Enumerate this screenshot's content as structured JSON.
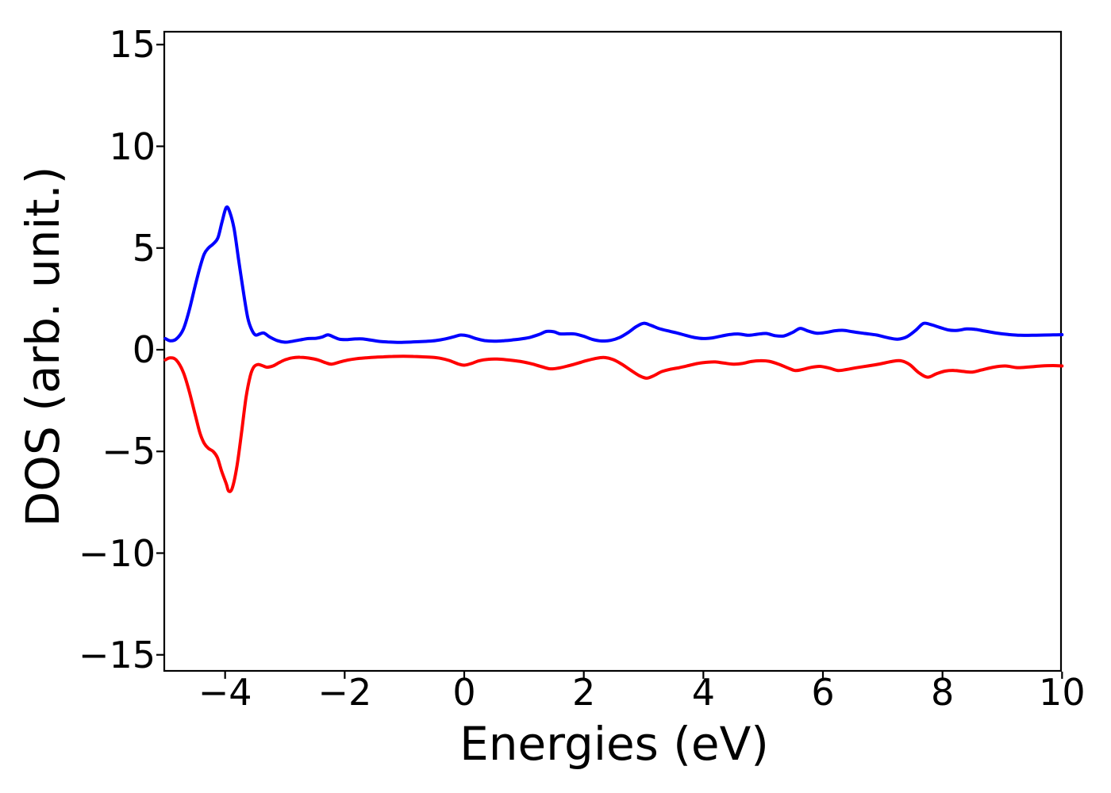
{
  "figure": {
    "background": "#ffffff",
    "frame_color": "#000000"
  },
  "chart_data": {
    "type": "line",
    "title": "",
    "xlabel": "Energies (eV)",
    "ylabel": "DOS (arb. unit.)",
    "xlim": [
      -5,
      10
    ],
    "ylim": [
      -15.8,
      15.6
    ],
    "x_ticks": [
      -4,
      -2,
      0,
      2,
      4,
      6,
      8,
      10
    ],
    "y_ticks": [
      15,
      10,
      5,
      0,
      -5,
      -10,
      -15
    ],
    "grid": false,
    "legend_position": "none",
    "series": [
      {
        "name": "blue-curve-spin-up-dos",
        "color": "#0000ff",
        "line_width": 4,
        "points": [
          [
            -5.0,
            0.55
          ],
          [
            -4.92,
            0.44
          ],
          [
            -4.82,
            0.52
          ],
          [
            -4.7,
            1.0
          ],
          [
            -4.6,
            1.95
          ],
          [
            -4.5,
            3.15
          ],
          [
            -4.42,
            4.05
          ],
          [
            -4.35,
            4.7
          ],
          [
            -4.28,
            5.0
          ],
          [
            -4.2,
            5.2
          ],
          [
            -4.12,
            5.5
          ],
          [
            -4.05,
            6.3
          ],
          [
            -3.98,
            7.0
          ],
          [
            -3.92,
            6.75
          ],
          [
            -3.85,
            5.95
          ],
          [
            -3.78,
            4.55
          ],
          [
            -3.7,
            2.95
          ],
          [
            -3.62,
            1.55
          ],
          [
            -3.55,
            0.95
          ],
          [
            -3.49,
            0.72
          ],
          [
            -3.42,
            0.78
          ],
          [
            -3.35,
            0.82
          ],
          [
            -3.25,
            0.62
          ],
          [
            -3.12,
            0.44
          ],
          [
            -3.0,
            0.37
          ],
          [
            -2.9,
            0.4
          ],
          [
            -2.75,
            0.48
          ],
          [
            -2.6,
            0.55
          ],
          [
            -2.48,
            0.56
          ],
          [
            -2.38,
            0.62
          ],
          [
            -2.28,
            0.73
          ],
          [
            -2.18,
            0.62
          ],
          [
            -2.08,
            0.51
          ],
          [
            -1.95,
            0.5
          ],
          [
            -1.82,
            0.53
          ],
          [
            -1.7,
            0.53
          ],
          [
            -1.56,
            0.47
          ],
          [
            -1.42,
            0.41
          ],
          [
            -1.28,
            0.38
          ],
          [
            -1.12,
            0.36
          ],
          [
            -0.96,
            0.37
          ],
          [
            -0.8,
            0.39
          ],
          [
            -0.64,
            0.41
          ],
          [
            -0.48,
            0.45
          ],
          [
            -0.32,
            0.53
          ],
          [
            -0.18,
            0.63
          ],
          [
            -0.06,
            0.72
          ],
          [
            0.06,
            0.68
          ],
          [
            0.2,
            0.54
          ],
          [
            0.34,
            0.45
          ],
          [
            0.5,
            0.42
          ],
          [
            0.65,
            0.44
          ],
          [
            0.8,
            0.48
          ],
          [
            0.95,
            0.53
          ],
          [
            1.1,
            0.61
          ],
          [
            1.25,
            0.75
          ],
          [
            1.38,
            0.9
          ],
          [
            1.5,
            0.88
          ],
          [
            1.6,
            0.78
          ],
          [
            1.72,
            0.78
          ],
          [
            1.85,
            0.77
          ],
          [
            2.0,
            0.66
          ],
          [
            2.14,
            0.51
          ],
          [
            2.3,
            0.43
          ],
          [
            2.45,
            0.46
          ],
          [
            2.6,
            0.6
          ],
          [
            2.75,
            0.86
          ],
          [
            2.88,
            1.14
          ],
          [
            3.0,
            1.3
          ],
          [
            3.12,
            1.2
          ],
          [
            3.25,
            1.05
          ],
          [
            3.4,
            0.93
          ],
          [
            3.55,
            0.83
          ],
          [
            3.7,
            0.71
          ],
          [
            3.85,
            0.6
          ],
          [
            4.0,
            0.55
          ],
          [
            4.15,
            0.58
          ],
          [
            4.3,
            0.67
          ],
          [
            4.45,
            0.75
          ],
          [
            4.6,
            0.77
          ],
          [
            4.75,
            0.71
          ],
          [
            4.9,
            0.76
          ],
          [
            5.05,
            0.8
          ],
          [
            5.2,
            0.69
          ],
          [
            5.35,
            0.68
          ],
          [
            5.5,
            0.86
          ],
          [
            5.62,
            1.05
          ],
          [
            5.75,
            0.92
          ],
          [
            5.9,
            0.81
          ],
          [
            6.05,
            0.85
          ],
          [
            6.2,
            0.93
          ],
          [
            6.35,
            0.95
          ],
          [
            6.5,
            0.88
          ],
          [
            6.7,
            0.8
          ],
          [
            6.9,
            0.72
          ],
          [
            7.1,
            0.58
          ],
          [
            7.25,
            0.52
          ],
          [
            7.4,
            0.63
          ],
          [
            7.55,
            0.95
          ],
          [
            7.68,
            1.29
          ],
          [
            7.8,
            1.24
          ],
          [
            7.95,
            1.1
          ],
          [
            8.1,
            0.97
          ],
          [
            8.25,
            0.95
          ],
          [
            8.4,
            1.02
          ],
          [
            8.55,
            1.0
          ],
          [
            8.7,
            0.92
          ],
          [
            8.9,
            0.82
          ],
          [
            9.1,
            0.75
          ],
          [
            9.3,
            0.71
          ],
          [
            9.5,
            0.71
          ],
          [
            9.7,
            0.72
          ],
          [
            9.85,
            0.73
          ],
          [
            10.0,
            0.74
          ]
        ]
      },
      {
        "name": "red-curve-spin-down-dos",
        "color": "#ff0000",
        "line_width": 4,
        "points": [
          [
            -5.0,
            -0.5
          ],
          [
            -4.92,
            -0.4
          ],
          [
            -4.82,
            -0.5
          ],
          [
            -4.7,
            -1.1
          ],
          [
            -4.6,
            -2.05
          ],
          [
            -4.5,
            -3.2
          ],
          [
            -4.42,
            -4.1
          ],
          [
            -4.35,
            -4.6
          ],
          [
            -4.28,
            -4.85
          ],
          [
            -4.2,
            -5.0
          ],
          [
            -4.13,
            -5.3
          ],
          [
            -4.06,
            -5.95
          ],
          [
            -3.98,
            -6.6
          ],
          [
            -3.94,
            -6.95
          ],
          [
            -3.88,
            -6.8
          ],
          [
            -3.8,
            -5.7
          ],
          [
            -3.72,
            -3.95
          ],
          [
            -3.65,
            -2.35
          ],
          [
            -3.58,
            -1.3
          ],
          [
            -3.52,
            -0.85
          ],
          [
            -3.45,
            -0.73
          ],
          [
            -3.38,
            -0.78
          ],
          [
            -3.3,
            -0.86
          ],
          [
            -3.2,
            -0.8
          ],
          [
            -3.1,
            -0.64
          ],
          [
            -3.0,
            -0.5
          ],
          [
            -2.88,
            -0.4
          ],
          [
            -2.75,
            -0.37
          ],
          [
            -2.6,
            -0.41
          ],
          [
            -2.45,
            -0.5
          ],
          [
            -2.32,
            -0.64
          ],
          [
            -2.22,
            -0.71
          ],
          [
            -2.1,
            -0.62
          ],
          [
            -1.95,
            -0.51
          ],
          [
            -1.8,
            -0.44
          ],
          [
            -1.65,
            -0.4
          ],
          [
            -1.5,
            -0.37
          ],
          [
            -1.35,
            -0.35
          ],
          [
            -1.2,
            -0.33
          ],
          [
            -1.02,
            -0.32
          ],
          [
            -0.85,
            -0.33
          ],
          [
            -0.7,
            -0.35
          ],
          [
            -0.55,
            -0.37
          ],
          [
            -0.4,
            -0.42
          ],
          [
            -0.25,
            -0.53
          ],
          [
            -0.1,
            -0.7
          ],
          [
            0.0,
            -0.76
          ],
          [
            0.12,
            -0.68
          ],
          [
            0.25,
            -0.54
          ],
          [
            0.4,
            -0.47
          ],
          [
            0.55,
            -0.46
          ],
          [
            0.7,
            -0.49
          ],
          [
            0.85,
            -0.54
          ],
          [
            1.0,
            -0.61
          ],
          [
            1.15,
            -0.71
          ],
          [
            1.3,
            -0.84
          ],
          [
            1.44,
            -0.94
          ],
          [
            1.58,
            -0.9
          ],
          [
            1.73,
            -0.8
          ],
          [
            1.88,
            -0.68
          ],
          [
            2.03,
            -0.55
          ],
          [
            2.18,
            -0.44
          ],
          [
            2.33,
            -0.38
          ],
          [
            2.48,
            -0.47
          ],
          [
            2.63,
            -0.7
          ],
          [
            2.78,
            -1.0
          ],
          [
            2.93,
            -1.28
          ],
          [
            3.05,
            -1.4
          ],
          [
            3.17,
            -1.28
          ],
          [
            3.3,
            -1.08
          ],
          [
            3.45,
            -0.96
          ],
          [
            3.6,
            -0.88
          ],
          [
            3.75,
            -0.78
          ],
          [
            3.9,
            -0.68
          ],
          [
            4.05,
            -0.62
          ],
          [
            4.2,
            -0.6
          ],
          [
            4.35,
            -0.66
          ],
          [
            4.5,
            -0.71
          ],
          [
            4.65,
            -0.68
          ],
          [
            4.8,
            -0.58
          ],
          [
            4.95,
            -0.54
          ],
          [
            5.1,
            -0.57
          ],
          [
            5.25,
            -0.7
          ],
          [
            5.4,
            -0.88
          ],
          [
            5.53,
            -1.02
          ],
          [
            5.65,
            -0.98
          ],
          [
            5.8,
            -0.87
          ],
          [
            5.95,
            -0.82
          ],
          [
            6.1,
            -0.9
          ],
          [
            6.25,
            -1.02
          ],
          [
            6.4,
            -0.97
          ],
          [
            6.55,
            -0.89
          ],
          [
            6.75,
            -0.8
          ],
          [
            6.95,
            -0.7
          ],
          [
            7.15,
            -0.58
          ],
          [
            7.3,
            -0.54
          ],
          [
            7.45,
            -0.73
          ],
          [
            7.6,
            -1.12
          ],
          [
            7.75,
            -1.35
          ],
          [
            7.9,
            -1.18
          ],
          [
            8.05,
            -1.05
          ],
          [
            8.2,
            -1.02
          ],
          [
            8.35,
            -1.07
          ],
          [
            8.5,
            -1.1
          ],
          [
            8.65,
            -1.0
          ],
          [
            8.85,
            -0.86
          ],
          [
            9.05,
            -0.8
          ],
          [
            9.25,
            -0.88
          ],
          [
            9.45,
            -0.85
          ],
          [
            9.65,
            -0.8
          ],
          [
            9.85,
            -0.78
          ],
          [
            10.0,
            -0.8
          ]
        ]
      }
    ]
  }
}
